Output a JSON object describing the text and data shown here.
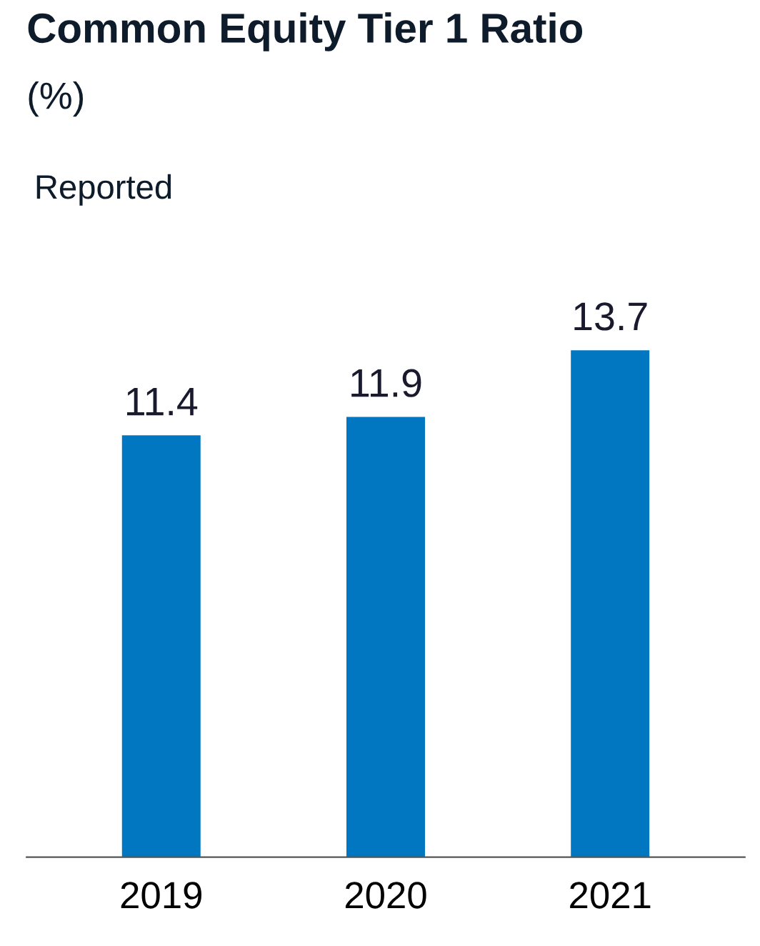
{
  "chart_data": {
    "type": "bar",
    "title": "Common Equity Tier 1 Ratio",
    "subtitle": "(%)",
    "annotations": [
      "Reported"
    ],
    "categories": [
      "2019",
      "2020",
      "2021"
    ],
    "values": [
      11.4,
      11.9,
      13.7
    ],
    "color": "#0077c0",
    "data_labels": true
  }
}
